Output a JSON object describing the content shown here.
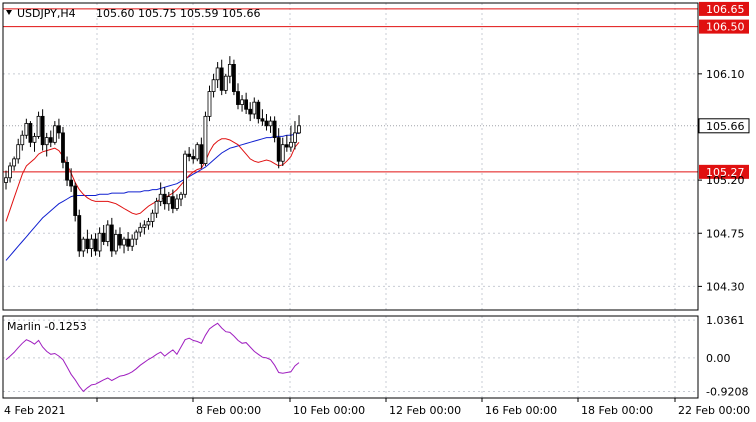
{
  "window": {
    "symbol_title": "USDJPY,H4",
    "ohlc": "105.60 105.75 105.59 105.66"
  },
  "colors": {
    "grid": "#c8ccd4",
    "frame": "#000000",
    "hline": "#e01010",
    "ma_fast": "#e01010",
    "ma_slow": "#1020d0",
    "osc": "#a020c0",
    "bull_fill": "#ffffff",
    "bear_fill": "#000000"
  },
  "chart_data": {
    "type": "candlestick",
    "price_axis": {
      "range": [
        104.1,
        106.7
      ],
      "ticks": [
        "106.10",
        "105.20",
        "104.75",
        "104.30"
      ]
    },
    "horizontal_levels": [
      {
        "value": 106.65,
        "label": "106.65"
      },
      {
        "value": 106.5,
        "label": "106.50"
      },
      {
        "value": 105.27,
        "label": "105.27"
      }
    ],
    "last_price": {
      "value": 105.66,
      "label": "105.66"
    },
    "time_labels": [
      {
        "index": 0,
        "label": "4 Feb 2021"
      },
      {
        "index": 19,
        "label": "8 Feb 00:00"
      },
      {
        "index": 43,
        "label": "10 Feb 00:00"
      },
      {
        "index": 67,
        "label": "12 Feb 00:00"
      },
      {
        "index": 91,
        "label": "16 Feb 00:00"
      },
      {
        "index": 115,
        "label": "18 Feb 00:00"
      },
      {
        "index": 139,
        "label": "22 Feb 00:00"
      }
    ],
    "candles": [
      [
        105.18,
        105.28,
        105.12,
        105.22
      ],
      [
        105.22,
        105.35,
        105.18,
        105.32
      ],
      [
        105.32,
        105.4,
        105.28,
        105.38
      ],
      [
        105.38,
        105.55,
        105.34,
        105.5
      ],
      [
        105.5,
        105.62,
        105.45,
        105.58
      ],
      [
        105.58,
        105.72,
        105.55,
        105.68
      ],
      [
        105.68,
        105.7,
        105.48,
        105.52
      ],
      [
        105.52,
        105.6,
        105.44,
        105.57
      ],
      [
        105.57,
        105.78,
        105.55,
        105.74
      ],
      [
        105.74,
        105.8,
        105.45,
        105.5
      ],
      [
        105.5,
        105.6,
        105.4,
        105.56
      ],
      [
        105.56,
        105.62,
        105.48,
        105.52
      ],
      [
        105.52,
        105.7,
        105.5,
        105.66
      ],
      [
        105.66,
        105.72,
        105.55,
        105.6
      ],
      [
        105.6,
        105.65,
        105.3,
        105.35
      ],
      [
        105.35,
        105.4,
        105.15,
        105.2
      ],
      [
        105.2,
        105.3,
        105.1,
        105.15
      ],
      [
        105.15,
        105.18,
        104.85,
        104.9
      ],
      [
        104.9,
        104.95,
        104.55,
        104.6
      ],
      [
        104.6,
        104.72,
        104.55,
        104.7
      ],
      [
        104.7,
        104.78,
        104.58,
        104.62
      ],
      [
        104.62,
        104.74,
        104.55,
        104.7
      ],
      [
        104.7,
        104.75,
        104.56,
        104.6
      ],
      [
        104.6,
        104.8,
        104.55,
        104.75
      ],
      [
        104.75,
        104.82,
        104.65,
        104.68
      ],
      [
        104.68,
        104.86,
        104.64,
        104.82
      ],
      [
        104.82,
        104.88,
        104.55,
        104.6
      ],
      [
        104.6,
        104.78,
        104.57,
        104.74
      ],
      [
        104.74,
        104.8,
        104.62,
        104.65
      ],
      [
        104.65,
        104.72,
        104.58,
        104.7
      ],
      [
        104.7,
        104.76,
        104.6,
        104.64
      ],
      [
        104.64,
        104.74,
        104.6,
        104.7
      ],
      [
        104.7,
        104.78,
        104.65,
        104.76
      ],
      [
        104.76,
        104.84,
        104.72,
        104.8
      ],
      [
        104.8,
        104.86,
        104.74,
        104.82
      ],
      [
        104.82,
        104.88,
        104.78,
        104.85
      ],
      [
        104.85,
        104.95,
        104.8,
        104.92
      ],
      [
        104.92,
        105.05,
        104.88,
        105.02
      ],
      [
        105.02,
        105.18,
        104.98,
        105.08
      ],
      [
        105.08,
        105.14,
        104.95,
        105.0
      ],
      [
        105.0,
        105.1,
        104.94,
        105.06
      ],
      [
        105.06,
        105.12,
        104.92,
        104.96
      ],
      [
        104.96,
        105.08,
        104.94,
        105.04
      ],
      [
        105.04,
        105.1,
        104.98,
        105.08
      ],
      [
        105.08,
        105.45,
        105.05,
        105.42
      ],
      [
        105.42,
        105.48,
        105.36,
        105.4
      ],
      [
        105.4,
        105.46,
        105.34,
        105.38
      ],
      [
        105.38,
        105.52,
        105.36,
        105.5
      ],
      [
        105.5,
        105.56,
        105.3,
        105.34
      ],
      [
        105.34,
        105.78,
        105.32,
        105.74
      ],
      [
        105.74,
        106.0,
        105.7,
        105.95
      ],
      [
        105.95,
        106.1,
        105.9,
        106.05
      ],
      [
        106.05,
        106.2,
        105.98,
        106.15
      ],
      [
        106.15,
        106.22,
        105.92,
        105.96
      ],
      [
        105.96,
        106.1,
        105.93,
        106.08
      ],
      [
        106.08,
        106.25,
        106.02,
        106.18
      ],
      [
        106.18,
        106.22,
        105.92,
        105.95
      ],
      [
        105.95,
        106.02,
        105.8,
        105.84
      ],
      [
        105.84,
        105.92,
        105.78,
        105.88
      ],
      [
        105.88,
        105.94,
        105.76,
        105.8
      ],
      [
        105.8,
        105.86,
        105.7,
        105.76
      ],
      [
        105.76,
        105.9,
        105.72,
        105.86
      ],
      [
        105.86,
        105.88,
        105.68,
        105.72
      ],
      [
        105.72,
        105.8,
        105.66,
        105.7
      ],
      [
        105.7,
        105.76,
        105.62,
        105.66
      ],
      [
        105.66,
        105.74,
        105.6,
        105.7
      ],
      [
        105.7,
        105.74,
        105.52,
        105.56
      ],
      [
        105.56,
        105.64,
        105.3,
        105.36
      ],
      [
        105.36,
        105.56,
        105.32,
        105.5
      ],
      [
        105.5,
        105.58,
        105.44,
        105.48
      ],
      [
        105.48,
        105.66,
        105.44,
        105.52
      ],
      [
        105.52,
        105.7,
        105.46,
        105.6
      ],
      [
        105.6,
        105.75,
        105.59,
        105.66
      ]
    ],
    "ma_fast": [
      104.85,
      104.95,
      105.05,
      105.15,
      105.25,
      105.32,
      105.35,
      105.38,
      105.42,
      105.44,
      105.45,
      105.46,
      105.47,
      105.45,
      105.4,
      105.33,
      105.26,
      105.18,
      105.12,
      105.08,
      105.05,
      105.03,
      105.02,
      105.02,
      105.02,
      105.02,
      105.01,
      105.0,
      104.98,
      104.96,
      104.94,
      104.92,
      104.91,
      104.92,
      104.95,
      104.98,
      105.0,
      105.02,
      105.04,
      105.05,
      105.07,
      105.09,
      105.12,
      105.16,
      105.2,
      105.24,
      105.27,
      105.29,
      105.3,
      105.36,
      105.44,
      105.5,
      105.53,
      105.55,
      105.55,
      105.54,
      105.52,
      105.5,
      105.46,
      105.42,
      105.38,
      105.36,
      105.35,
      105.36,
      105.37,
      105.36,
      105.34,
      105.32,
      105.33,
      105.36,
      105.4,
      105.48,
      105.52
    ],
    "ma_slow": [
      104.52,
      104.56,
      104.6,
      104.64,
      104.68,
      104.72,
      104.76,
      104.8,
      104.84,
      104.88,
      104.91,
      104.94,
      104.97,
      105.0,
      105.02,
      105.04,
      105.06,
      105.07,
      105.07,
      105.07,
      105.07,
      105.07,
      105.07,
      105.08,
      105.08,
      105.08,
      105.09,
      105.09,
      105.09,
      105.09,
      105.1,
      105.1,
      105.1,
      105.1,
      105.11,
      105.11,
      105.12,
      105.12,
      105.13,
      105.14,
      105.15,
      105.16,
      105.17,
      105.19,
      105.21,
      105.23,
      105.25,
      105.27,
      105.29,
      105.31,
      105.34,
      105.37,
      105.4,
      105.43,
      105.45,
      105.47,
      105.48,
      105.49,
      105.5,
      105.51,
      105.52,
      105.53,
      105.54,
      105.55,
      105.56,
      105.56,
      105.57,
      105.57,
      105.57,
      105.58,
      105.58,
      105.59,
      105.6
    ],
    "oscillator": {
      "name": "Marlin -0.1253",
      "range": [
        -1.1,
        1.15
      ],
      "ticks": [
        "1.0361",
        "0.00",
        "-0.9208"
      ],
      "values": [
        -0.05,
        0.05,
        0.15,
        0.28,
        0.4,
        0.5,
        0.45,
        0.38,
        0.48,
        0.3,
        0.18,
        0.1,
        0.12,
        0.05,
        -0.05,
        -0.25,
        -0.45,
        -0.6,
        -0.78,
        -0.92,
        -0.82,
        -0.74,
        -0.72,
        -0.66,
        -0.6,
        -0.55,
        -0.62,
        -0.56,
        -0.5,
        -0.48,
        -0.44,
        -0.38,
        -0.3,
        -0.2,
        -0.12,
        -0.04,
        0.02,
        0.1,
        0.16,
        0.05,
        0.14,
        0.22,
        0.1,
        0.3,
        0.5,
        0.54,
        0.48,
        0.45,
        0.4,
        0.62,
        0.8,
        0.88,
        0.95,
        0.82,
        0.72,
        0.7,
        0.6,
        0.48,
        0.4,
        0.42,
        0.3,
        0.18,
        0.1,
        0.02,
        0.0,
        -0.05,
        -0.2,
        -0.4,
        -0.42,
        -0.4,
        -0.38,
        -0.22,
        -0.13
      ]
    }
  }
}
